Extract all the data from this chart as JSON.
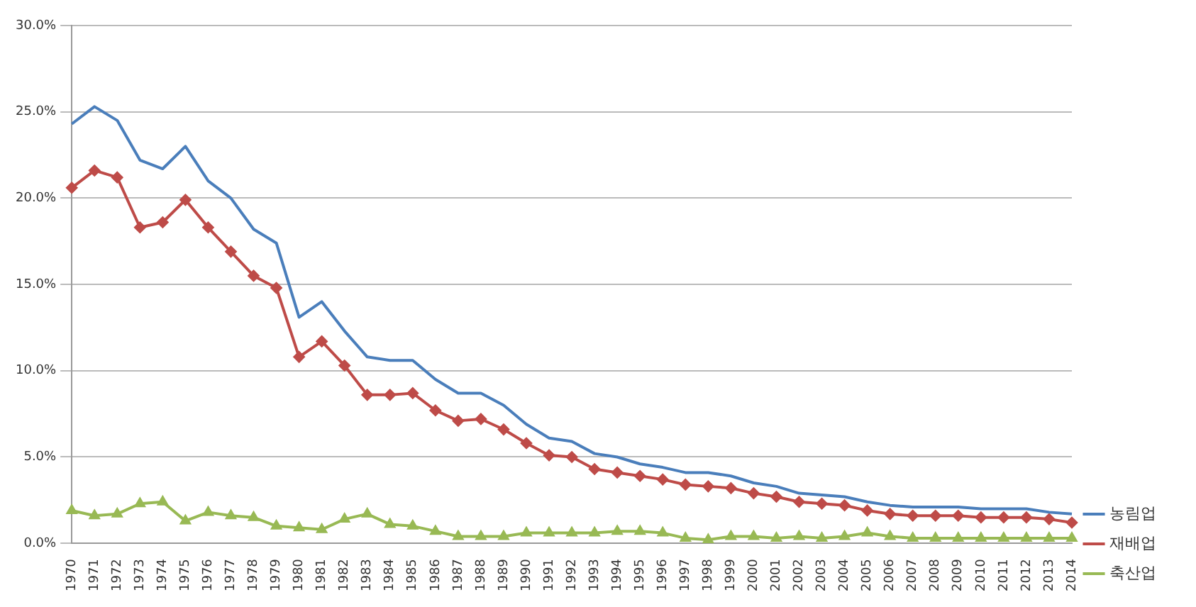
{
  "chart_data": {
    "type": "line",
    "categories": [
      "1970",
      "1971",
      "1972",
      "1973",
      "1974",
      "1975",
      "1976",
      "1977",
      "1978",
      "1979",
      "1980",
      "1981",
      "1982",
      "1983",
      "1984",
      "1985",
      "1986",
      "1987",
      "1988",
      "1989",
      "1990",
      "1991",
      "1992",
      "1993",
      "1994",
      "1995",
      "1996",
      "1997",
      "1998",
      "1999",
      "2000",
      "2001",
      "2002",
      "2003",
      "2004",
      "2005",
      "2006",
      "2007",
      "2008",
      "2009",
      "2010",
      "2011",
      "2012",
      "2013",
      "2014"
    ],
    "series": [
      {
        "name": "농림업",
        "color": "#4a7ebb",
        "marker": "none",
        "values": [
          24.3,
          25.3,
          24.5,
          22.2,
          21.7,
          23.0,
          21.0,
          20.0,
          18.2,
          17.4,
          13.1,
          14.0,
          12.3,
          10.8,
          10.6,
          10.6,
          9.5,
          8.7,
          8.7,
          8.0,
          6.9,
          6.1,
          5.9,
          5.2,
          5.0,
          4.6,
          4.4,
          4.1,
          4.1,
          3.9,
          3.5,
          3.3,
          2.9,
          2.8,
          2.7,
          2.4,
          2.2,
          2.1,
          2.1,
          2.1,
          2.0,
          2.0,
          2.0,
          1.8,
          1.7
        ]
      },
      {
        "name": "재배업",
        "color": "#be4b48",
        "marker": "diamond",
        "values": [
          20.6,
          21.6,
          21.2,
          18.3,
          18.6,
          19.9,
          18.3,
          16.9,
          15.5,
          14.8,
          10.8,
          11.7,
          10.3,
          8.6,
          8.6,
          8.7,
          7.7,
          7.1,
          7.2,
          6.6,
          5.8,
          5.1,
          5.0,
          4.3,
          4.1,
          3.9,
          3.7,
          3.4,
          3.3,
          3.2,
          2.9,
          2.7,
          2.4,
          2.3,
          2.2,
          1.9,
          1.7,
          1.6,
          1.6,
          1.6,
          1.5,
          1.5,
          1.5,
          1.4,
          1.2
        ]
      },
      {
        "name": "축산업",
        "color": "#98b954",
        "marker": "triangle",
        "values": [
          1.9,
          1.6,
          1.7,
          2.3,
          2.4,
          1.3,
          1.8,
          1.6,
          1.5,
          1.0,
          0.9,
          0.8,
          1.4,
          1.7,
          1.1,
          1.0,
          0.7,
          0.4,
          0.4,
          0.4,
          0.6,
          0.6,
          0.6,
          0.6,
          0.7,
          0.7,
          0.6,
          0.3,
          0.2,
          0.4,
          0.4,
          0.3,
          0.4,
          0.3,
          0.4,
          0.6,
          0.4,
          0.3,
          0.3,
          0.3,
          0.3,
          0.3,
          0.3,
          0.3,
          0.3
        ]
      }
    ],
    "ylim": [
      0,
      30
    ],
    "yticks": [
      {
        "value": 0,
        "label": "0.0%"
      },
      {
        "value": 5,
        "label": "5.0%"
      },
      {
        "value": 10,
        "label": "10.0%"
      },
      {
        "value": 15,
        "label": "15.0%"
      },
      {
        "value": 20,
        "label": "20.0%"
      },
      {
        "value": 25,
        "label": "25.0%"
      },
      {
        "value": 30,
        "label": "30.0%"
      }
    ],
    "grid": "y",
    "legend": "right",
    "line_style": "solid"
  }
}
